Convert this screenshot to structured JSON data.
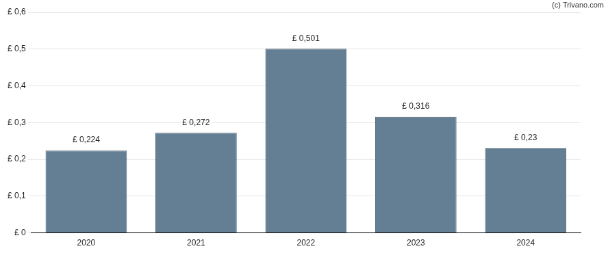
{
  "chart_data": {
    "type": "bar",
    "annotations": [
      "(c) Trivano.com"
    ],
    "categories": [
      "2020",
      "2021",
      "2022",
      "2023",
      "2024"
    ],
    "values": [
      0.224,
      0.272,
      0.501,
      0.316,
      0.23
    ],
    "value_labels": [
      "£ 0,224",
      "£ 0,272",
      "£ 0,501",
      "£ 0,316",
      "£ 0,23"
    ],
    "data_labels": true,
    "color": "#647f94",
    "ylim": [
      0,
      0.6
    ],
    "yticks": [
      {
        "value": 0,
        "label": "£ 0"
      },
      {
        "value": 0.1,
        "label": "£ 0,1"
      },
      {
        "value": 0.2,
        "label": "£ 0,2"
      },
      {
        "value": 0.3,
        "label": "£ 0,3"
      },
      {
        "value": 0.4,
        "label": "£ 0,4"
      },
      {
        "value": 0.5,
        "label": "£ 0,5"
      },
      {
        "value": 0.6,
        "label": "£ 0,6"
      }
    ],
    "grid": true
  }
}
